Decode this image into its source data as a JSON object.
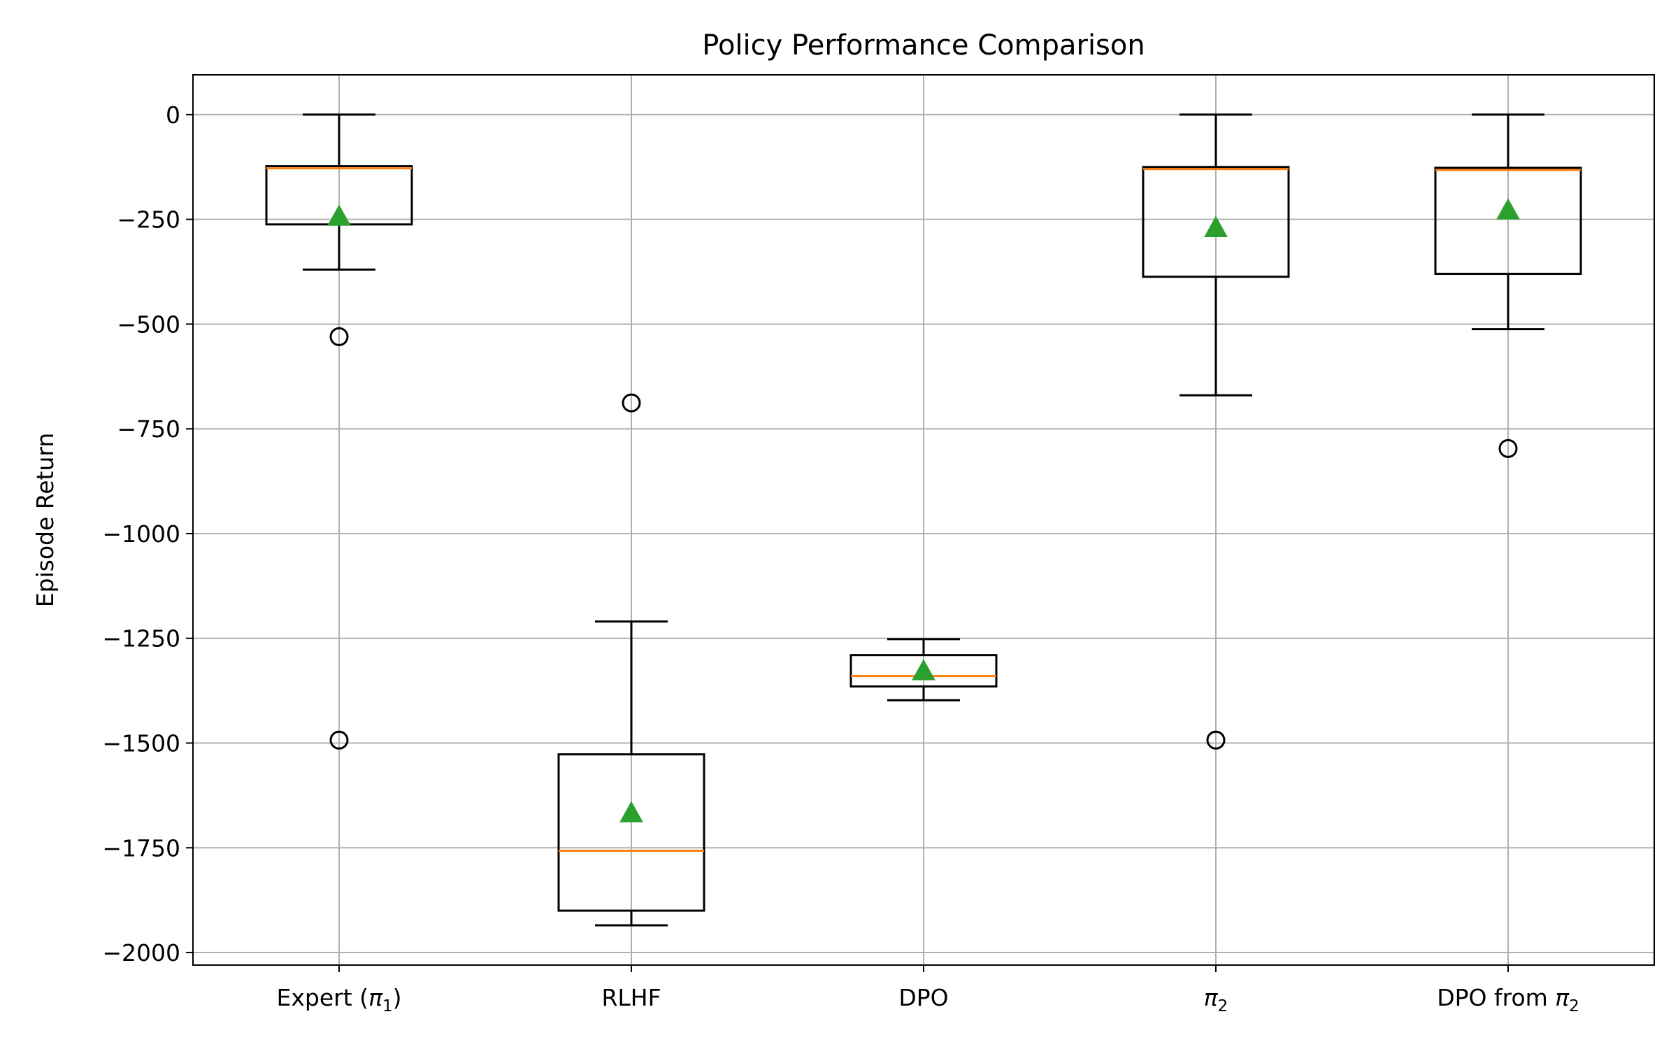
{
  "chart_data": {
    "type": "box",
    "title": "Policy Performance Comparison",
    "xlabel": "",
    "ylabel": "Episode Return",
    "ylim": [
      -2030,
      95
    ],
    "yticks": [
      0,
      -250,
      -500,
      -750,
      -1000,
      -1250,
      -1500,
      -1750,
      -2000
    ],
    "ytick_labels": [
      "0",
      "−250",
      "−500",
      "−750",
      "−1000",
      "−1250",
      "−1500",
      "−1750",
      "−2000"
    ],
    "grid": true,
    "categories": [
      {
        "label": "Expert (",
        "sym": "π",
        "sub": "1",
        "suffix": ")"
      },
      {
        "label": "RLHF",
        "sym": "",
        "sub": "",
        "suffix": ""
      },
      {
        "label": "DPO",
        "sym": "",
        "sub": "",
        "suffix": ""
      },
      {
        "label": "",
        "sym": "π",
        "sub": "2",
        "suffix": ""
      },
      {
        "label": "DPO from ",
        "sym": "π",
        "sub": "2",
        "suffix": ""
      }
    ],
    "boxes": [
      {
        "whisker_low": -370,
        "q1": -262,
        "median": -128,
        "q3": -123,
        "whisker_high": 0,
        "mean": -243,
        "outliers": [
          -530,
          -1493
        ]
      },
      {
        "whisker_low": -1935,
        "q1": -1900,
        "median": -1757,
        "q3": -1527,
        "whisker_high": -1210,
        "mean": -1667,
        "outliers": [
          -688
        ]
      },
      {
        "whisker_low": -1398,
        "q1": -1365,
        "median": -1340,
        "q3": -1290,
        "whisker_high": -1252,
        "mean": -1328,
        "outliers": []
      },
      {
        "whisker_low": -670,
        "q1": -387,
        "median": -130,
        "q3": -125,
        "whisker_high": 0,
        "mean": -270,
        "outliers": [
          -1493
        ]
      },
      {
        "whisker_low": -512,
        "q1": -380,
        "median": -132,
        "q3": -127,
        "whisker_high": 0,
        "mean": -228,
        "outliers": [
          -797
        ]
      }
    ],
    "colors": {
      "box": "#000000",
      "median": "#ff7f0e",
      "mean": "#2ca02c",
      "grid": "#b0b0b0"
    }
  }
}
